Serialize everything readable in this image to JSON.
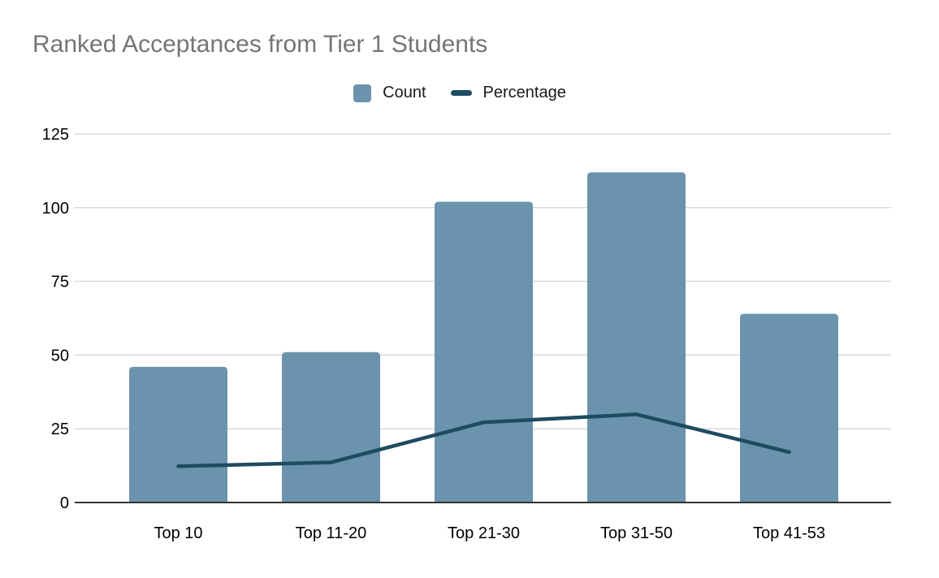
{
  "title": "Ranked Acceptances from Tier 1 Students",
  "colors": {
    "bar": "#6b93ad",
    "line": "#1e4b61",
    "title_text": "#757575",
    "axis_text": "#000000",
    "gridline": "#d9d9d9",
    "zero_line": "#333333",
    "background": "#ffffff"
  },
  "chart_data": {
    "type": "bar",
    "subtype": "combo-bar-line",
    "title": "Ranked Acceptances from Tier 1 Students",
    "categories": [
      "Top 10",
      "Top 11-20",
      "Top 21-30",
      "Top 31-50",
      "Top 41-53"
    ],
    "series": [
      {
        "name": "Count",
        "type": "bar",
        "color": "#6b93ad",
        "values": [
          46,
          51,
          102,
          112,
          64
        ]
      },
      {
        "name": "Percentage",
        "type": "line",
        "color": "#1e4b61",
        "values": [
          12.3,
          13.6,
          27.2,
          29.9,
          17.1
        ]
      }
    ],
    "xlabel": "",
    "ylabel": "",
    "ylim": [
      0,
      125
    ],
    "yticks": [
      0,
      25,
      50,
      75,
      100,
      125
    ],
    "grid": true,
    "legend_position": "top"
  }
}
